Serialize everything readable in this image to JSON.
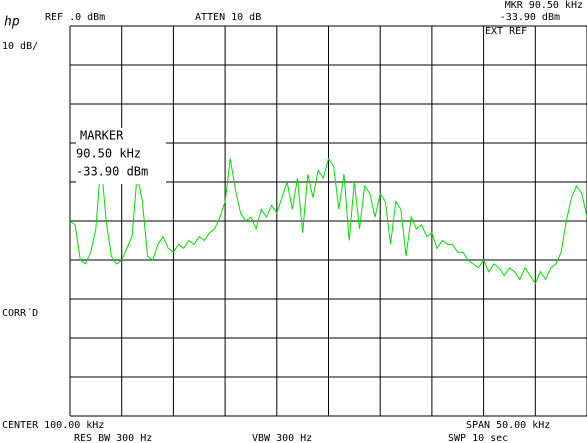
{
  "chart_data": {
    "type": "line",
    "logo": "hp",
    "ref_level": "REF .0 dBm",
    "attenuation": "ATTEN 10 dB",
    "marker_header_freq": "MKR 90.50 kHz",
    "marker_header_level": "-33.90 dBm",
    "ext_ref": "EXT REF",
    "scale": "10 dB/",
    "marker_title": "MARKER",
    "marker_freq": "90.50 kHz",
    "marker_level": "-33.90 dBm",
    "corrected": "CORR´D",
    "center": "CENTER 100.00 kHz",
    "span": "SPAN 50.00 kHz",
    "res_bw": "RES BW 300 Hz",
    "vbw": "VBW 300 Hz",
    "sweep": "SWP 10 sec",
    "xlim": [
      75,
      125
    ],
    "xticks": [
      75,
      80,
      85,
      90,
      95,
      100,
      105,
      110,
      115,
      120,
      125
    ],
    "ylim": [
      -100,
      0
    ],
    "yticks": [
      0,
      -10,
      -20,
      -30,
      -40,
      -50,
      -60,
      -70,
      -80,
      -90,
      -100
    ],
    "grid": true,
    "x": [
      75,
      75.5,
      76,
      76.5,
      77,
      77.5,
      78,
      78.5,
      79,
      79.5,
      80,
      80.5,
      81,
      81.5,
      82,
      82.5,
      83,
      83.5,
      84,
      84.5,
      85,
      85.5,
      86,
      86.5,
      87,
      87.5,
      88,
      88.5,
      89,
      89.5,
      90,
      90.5,
      91,
      91.5,
      92,
      92.5,
      93,
      93.5,
      94,
      94.5,
      95,
      95.5,
      96,
      96.5,
      97,
      97.5,
      98,
      98.5,
      99,
      99.5,
      100,
      100.5,
      101,
      101.5,
      102,
      102.5,
      103,
      103.5,
      104,
      104.5,
      105,
      105.5,
      106,
      106.5,
      107,
      107.5,
      108,
      108.5,
      109,
      109.5,
      110,
      110.5,
      111,
      111.5,
      112,
      112.5,
      113,
      113.5,
      114,
      114.5,
      115,
      115.5,
      116,
      116.5,
      117,
      117.5,
      118,
      118.5,
      119,
      119.5,
      120,
      120.5,
      121,
      121.5,
      122,
      122.5,
      123,
      123.5,
      124,
      124.5,
      125
    ],
    "series": [
      {
        "color": "#00dd00",
        "values": [
          -50,
          -51,
          -60,
          -61,
          -58,
          -52,
          -35,
          -50,
          -59,
          -61,
          -60,
          -57,
          -54,
          -38,
          -45,
          -59,
          -60,
          -56,
          -54,
          -57,
          -58,
          -56,
          -57,
          -55,
          -56,
          -54,
          -55,
          -53,
          -52,
          -49,
          -45,
          -34,
          -42,
          -48,
          -50,
          -49,
          -52,
          -47,
          -49,
          -46,
          -48,
          -44,
          -40,
          -47,
          -39,
          -53,
          -38,
          -44,
          -37,
          -39,
          -34,
          -36,
          -47,
          -38,
          -55,
          -40,
          -52,
          -41,
          -43,
          -49,
          -43,
          -45,
          -56,
          -45,
          -47,
          -59,
          -49,
          -52,
          -51,
          -54,
          -53,
          -57,
          -55,
          -56,
          -56,
          -58,
          -58,
          -60,
          -61,
          -62,
          -60,
          -63,
          -61,
          -62,
          -64,
          -62,
          -63,
          -65,
          -62,
          -64,
          -66,
          -63,
          -65,
          -62,
          -61,
          -58,
          -50,
          -44,
          -41,
          -43,
          -49
        ]
      }
    ]
  }
}
